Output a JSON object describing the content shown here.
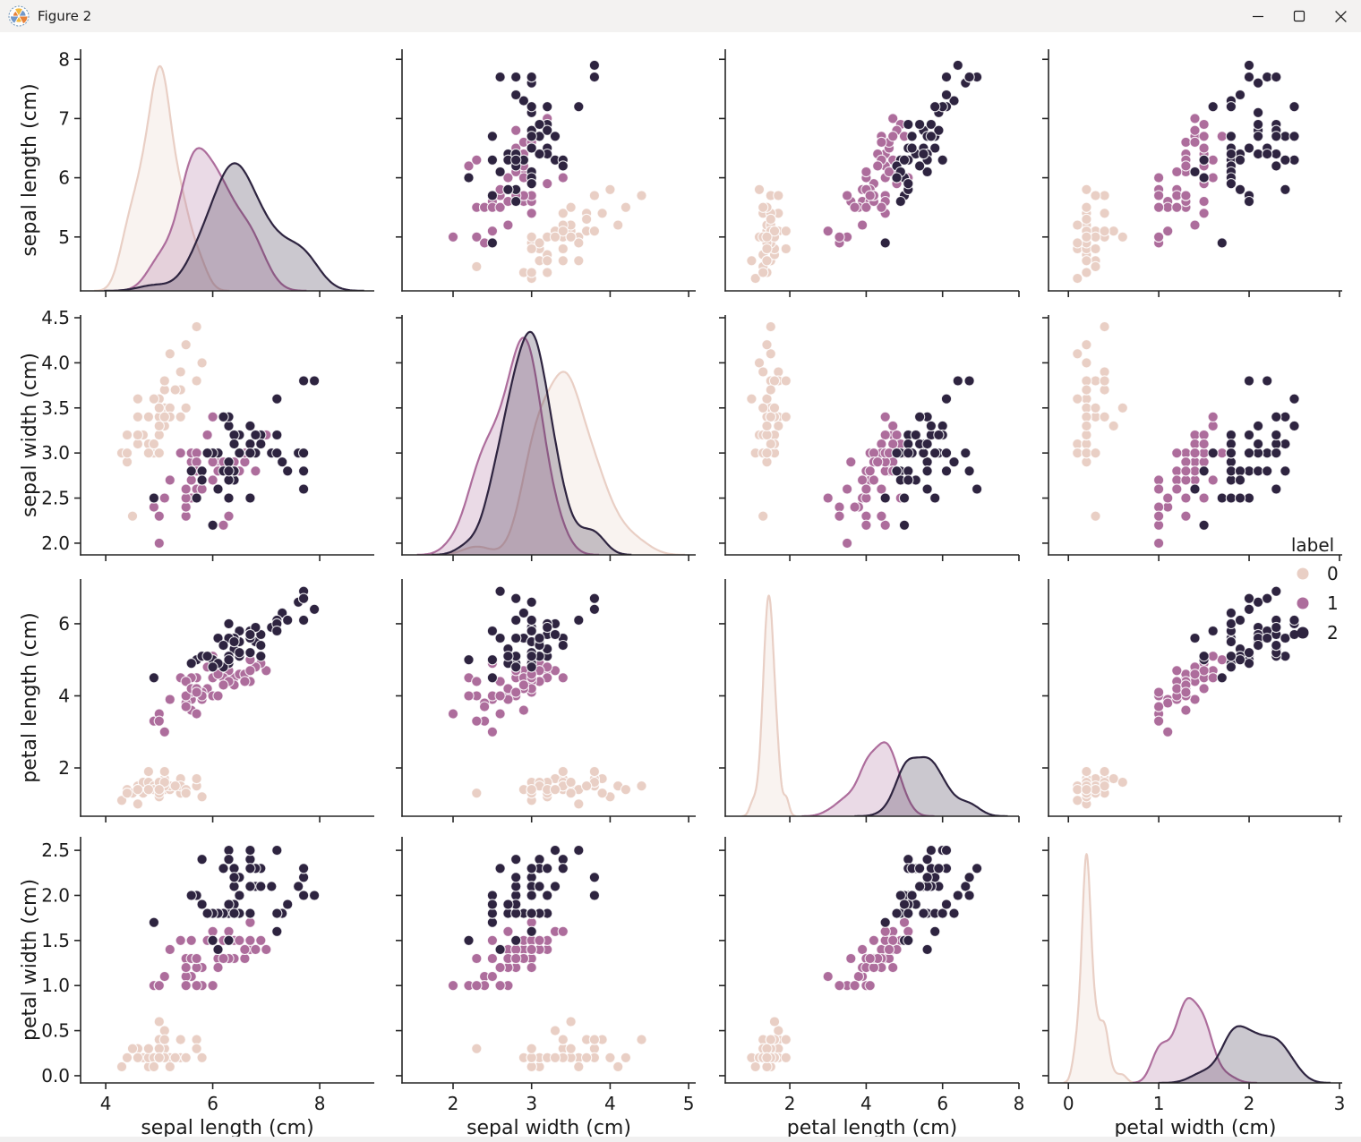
{
  "window": {
    "title": "Figure 2"
  },
  "chart_data": {
    "type": "scatter",
    "subtype": "pairplot",
    "diagonal": "kde",
    "grid": false,
    "text_color": "#1a1a1a",
    "spine_color": "#262626",
    "legend": {
      "title": "label",
      "position": "right",
      "entries": [
        {
          "label": "0",
          "color": "#e9cfc5"
        },
        {
          "label": "1",
          "color": "#ad6d9c"
        },
        {
          "label": "2",
          "color": "#2e2440"
        }
      ]
    },
    "variables": [
      {
        "key": "sepal_length",
        "label": "sepal length (cm)",
        "xlim": [
          3.53,
          9.02
        ],
        "ylim": [
          4.09,
          8.17
        ],
        "xticks": [
          4,
          6,
          8
        ],
        "yticks": [
          5,
          6,
          7,
          8
        ]
      },
      {
        "key": "sepal_width",
        "label": "sepal width (cm)",
        "xlim": [
          1.35,
          5.09
        ],
        "ylim": [
          1.87,
          4.53
        ],
        "xticks": [
          2,
          3,
          4,
          5
        ],
        "yticks": [
          2.0,
          2.5,
          3.0,
          3.5,
          4.0,
          4.5
        ]
      },
      {
        "key": "petal_length",
        "label": "petal length (cm)",
        "xlim": [
          0.31,
          8.0
        ],
        "ylim": [
          0.66,
          7.24
        ],
        "xticks": [
          2,
          4,
          6,
          8
        ],
        "yticks": [
          2,
          4,
          6
        ]
      },
      {
        "key": "petal_width",
        "label": "petal width (cm)",
        "xlim": [
          -0.22,
          3.03
        ],
        "ylim": [
          -0.08,
          2.65
        ],
        "xticks": [
          0,
          1,
          2,
          3
        ],
        "yticks": [
          0.0,
          0.5,
          1.0,
          1.5,
          2.0,
          2.5
        ]
      }
    ],
    "data": {
      "sepal_length": [
        5.1,
        4.9,
        4.7,
        4.6,
        5.0,
        5.4,
        4.6,
        5.0,
        4.4,
        4.9,
        5.4,
        4.8,
        4.8,
        4.3,
        5.8,
        5.7,
        5.4,
        5.1,
        5.7,
        5.1,
        5.4,
        5.1,
        4.6,
        5.1,
        4.8,
        5.0,
        5.0,
        5.2,
        5.2,
        4.7,
        4.8,
        5.4,
        5.2,
        5.5,
        4.9,
        5.0,
        5.5,
        4.9,
        4.4,
        5.1,
        5.0,
        4.5,
        4.4,
        5.0,
        5.1,
        4.8,
        5.1,
        4.6,
        5.3,
        5.0,
        7.0,
        6.4,
        6.9,
        5.5,
        6.5,
        5.7,
        6.3,
        4.9,
        6.6,
        5.2,
        5.0,
        5.9,
        6.0,
        6.1,
        5.6,
        6.7,
        5.6,
        5.8,
        6.2,
        5.6,
        5.9,
        6.1,
        6.3,
        6.1,
        6.4,
        6.6,
        6.8,
        6.7,
        6.0,
        5.7,
        5.5,
        5.5,
        5.8,
        6.0,
        5.4,
        6.0,
        6.7,
        6.3,
        5.6,
        5.5,
        5.5,
        6.1,
        5.8,
        5.0,
        5.6,
        5.7,
        5.7,
        6.2,
        5.1,
        5.7,
        6.3,
        5.8,
        7.1,
        6.3,
        6.5,
        7.6,
        4.9,
        7.3,
        6.7,
        7.2,
        6.5,
        6.4,
        6.8,
        5.7,
        5.8,
        6.4,
        6.5,
        7.7,
        7.7,
        6.0,
        6.9,
        5.6,
        7.7,
        6.3,
        6.7,
        7.2,
        6.2,
        6.1,
        6.4,
        7.2,
        7.4,
        7.9,
        6.4,
        6.3,
        6.1,
        7.7,
        6.3,
        6.4,
        6.0,
        6.9,
        6.7,
        6.9,
        5.8,
        6.8,
        6.7,
        6.7,
        6.3,
        6.5,
        6.2,
        5.9
      ],
      "sepal_width": [
        3.5,
        3.0,
        3.2,
        3.1,
        3.6,
        3.9,
        3.4,
        3.4,
        2.9,
        3.1,
        3.7,
        3.4,
        3.0,
        3.0,
        4.0,
        4.4,
        3.9,
        3.5,
        3.8,
        3.8,
        3.4,
        3.7,
        3.6,
        3.3,
        3.4,
        3.0,
        3.4,
        3.5,
        3.4,
        3.2,
        3.1,
        3.4,
        4.1,
        4.2,
        3.1,
        3.2,
        3.5,
        3.6,
        3.0,
        3.4,
        3.5,
        2.3,
        3.2,
        3.5,
        3.8,
        3.0,
        3.8,
        3.2,
        3.7,
        3.3,
        3.2,
        3.2,
        3.1,
        2.3,
        2.8,
        2.8,
        3.3,
        2.4,
        2.9,
        2.7,
        2.0,
        3.0,
        2.2,
        2.9,
        2.9,
        3.1,
        3.0,
        2.7,
        2.2,
        2.5,
        3.2,
        2.8,
        2.5,
        2.8,
        2.9,
        3.0,
        2.8,
        3.0,
        2.9,
        2.6,
        2.4,
        2.4,
        2.7,
        2.7,
        3.0,
        3.4,
        3.1,
        2.3,
        3.0,
        2.5,
        2.6,
        3.0,
        2.6,
        2.3,
        2.7,
        3.0,
        2.9,
        2.9,
        2.5,
        2.8,
        3.3,
        2.7,
        3.0,
        2.9,
        3.0,
        3.0,
        2.5,
        2.9,
        2.5,
        3.6,
        3.2,
        2.7,
        3.0,
        2.5,
        2.8,
        3.2,
        3.0,
        3.8,
        2.6,
        2.2,
        3.2,
        2.8,
        2.8,
        2.7,
        3.3,
        3.2,
        2.8,
        3.0,
        2.8,
        3.0,
        2.8,
        3.8,
        2.8,
        2.8,
        2.6,
        3.0,
        3.4,
        3.1,
        3.0,
        3.1,
        3.1,
        3.1,
        2.7,
        3.2,
        3.3,
        3.0,
        2.5,
        3.0,
        3.4,
        3.0
      ],
      "petal_length": [
        1.4,
        1.4,
        1.3,
        1.5,
        1.4,
        1.7,
        1.4,
        1.5,
        1.4,
        1.5,
        1.5,
        1.6,
        1.4,
        1.1,
        1.2,
        1.5,
        1.3,
        1.4,
        1.7,
        1.5,
        1.7,
        1.5,
        1.0,
        1.7,
        1.9,
        1.6,
        1.6,
        1.5,
        1.4,
        1.6,
        1.6,
        1.5,
        1.5,
        1.4,
        1.5,
        1.2,
        1.3,
        1.4,
        1.3,
        1.5,
        1.3,
        1.3,
        1.3,
        1.6,
        1.9,
        1.4,
        1.6,
        1.4,
        1.5,
        1.4,
        4.7,
        4.5,
        4.9,
        4.0,
        4.6,
        4.5,
        4.7,
        3.3,
        4.6,
        3.9,
        3.5,
        4.2,
        4.0,
        4.7,
        3.6,
        4.4,
        4.5,
        4.1,
        4.5,
        3.9,
        4.8,
        4.0,
        4.9,
        4.7,
        4.3,
        4.4,
        4.8,
        5.0,
        4.5,
        3.5,
        3.8,
        3.7,
        3.9,
        5.1,
        4.5,
        4.5,
        4.7,
        4.4,
        4.1,
        4.0,
        4.4,
        4.6,
        4.0,
        3.3,
        4.2,
        4.2,
        4.2,
        4.3,
        3.0,
        4.1,
        6.0,
        5.1,
        5.9,
        5.6,
        5.8,
        6.6,
        4.5,
        6.3,
        5.8,
        6.1,
        5.1,
        5.3,
        5.5,
        5.0,
        5.1,
        5.3,
        5.5,
        6.7,
        6.9,
        5.0,
        5.7,
        4.9,
        6.7,
        4.9,
        5.7,
        6.0,
        4.8,
        4.9,
        5.6,
        5.8,
        6.1,
        6.4,
        5.6,
        5.1,
        5.6,
        6.1,
        5.6,
        5.5,
        4.8,
        5.4,
        5.6,
        5.1,
        5.1,
        5.9,
        5.7,
        5.2,
        5.0,
        5.2,
        5.4,
        5.1
      ],
      "petal_width": [
        0.2,
        0.2,
        0.2,
        0.2,
        0.2,
        0.4,
        0.3,
        0.2,
        0.2,
        0.1,
        0.2,
        0.2,
        0.1,
        0.1,
        0.2,
        0.4,
        0.4,
        0.3,
        0.3,
        0.3,
        0.2,
        0.4,
        0.2,
        0.5,
        0.2,
        0.2,
        0.4,
        0.2,
        0.2,
        0.2,
        0.2,
        0.4,
        0.1,
        0.2,
        0.2,
        0.2,
        0.2,
        0.1,
        0.2,
        0.2,
        0.3,
        0.3,
        0.2,
        0.6,
        0.4,
        0.3,
        0.2,
        0.2,
        0.2,
        0.2,
        1.4,
        1.5,
        1.5,
        1.3,
        1.5,
        1.3,
        1.6,
        1.0,
        1.3,
        1.4,
        1.0,
        1.5,
        1.0,
        1.4,
        1.3,
        1.4,
        1.5,
        1.0,
        1.5,
        1.1,
        1.8,
        1.3,
        1.5,
        1.2,
        1.3,
        1.4,
        1.4,
        1.7,
        1.5,
        1.0,
        1.1,
        1.0,
        1.2,
        1.6,
        1.5,
        1.6,
        1.5,
        1.3,
        1.3,
        1.3,
        1.2,
        1.4,
        1.2,
        1.0,
        1.3,
        1.2,
        1.3,
        1.3,
        1.1,
        1.3,
        2.5,
        1.9,
        2.1,
        1.8,
        2.2,
        2.1,
        1.7,
        1.8,
        1.8,
        2.5,
        2.0,
        1.9,
        2.1,
        2.0,
        2.4,
        2.3,
        1.8,
        2.2,
        2.3,
        1.5,
        2.3,
        2.0,
        2.0,
        1.8,
        2.1,
        1.8,
        1.8,
        1.8,
        2.1,
        1.6,
        1.9,
        2.0,
        2.2,
        1.5,
        1.4,
        2.3,
        2.4,
        1.8,
        1.8,
        2.1,
        2.4,
        2.3,
        1.9,
        2.3,
        2.5,
        2.3,
        1.9,
        2.0,
        2.3,
        1.8
      ],
      "label": [
        0,
        0,
        0,
        0,
        0,
        0,
        0,
        0,
        0,
        0,
        0,
        0,
        0,
        0,
        0,
        0,
        0,
        0,
        0,
        0,
        0,
        0,
        0,
        0,
        0,
        0,
        0,
        0,
        0,
        0,
        0,
        0,
        0,
        0,
        0,
        0,
        0,
        0,
        0,
        0,
        0,
        0,
        0,
        0,
        0,
        0,
        0,
        0,
        0,
        0,
        1,
        1,
        1,
        1,
        1,
        1,
        1,
        1,
        1,
        1,
        1,
        1,
        1,
        1,
        1,
        1,
        1,
        1,
        1,
        1,
        1,
        1,
        1,
        1,
        1,
        1,
        1,
        1,
        1,
        1,
        1,
        1,
        1,
        1,
        1,
        1,
        1,
        1,
        1,
        1,
        1,
        1,
        1,
        1,
        1,
        1,
        1,
        1,
        1,
        1,
        2,
        2,
        2,
        2,
        2,
        2,
        2,
        2,
        2,
        2,
        2,
        2,
        2,
        2,
        2,
        2,
        2,
        2,
        2,
        2,
        2,
        2,
        2,
        2,
        2,
        2,
        2,
        2,
        2,
        2,
        2,
        2,
        2,
        2,
        2,
        2,
        2,
        2,
        2,
        2,
        2,
        2,
        2,
        2,
        2,
        2,
        2,
        2,
        2,
        2
      ]
    }
  }
}
